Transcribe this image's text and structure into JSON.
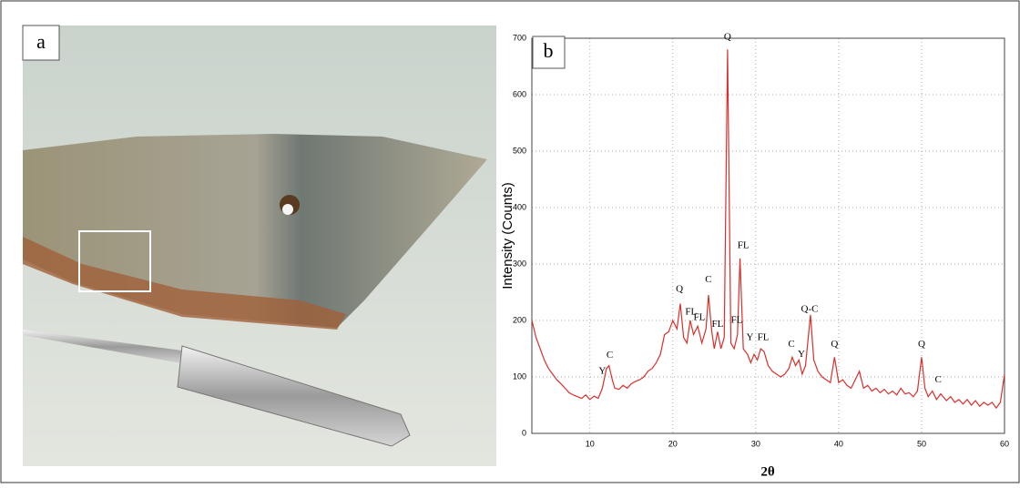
{
  "photo": {
    "label": "a"
  },
  "chart_data": {
    "type": "line",
    "panel_label": "b",
    "ylabel": "Intensity (Counts)",
    "xlabel": "2θ",
    "color": "#d8302c",
    "xlim": [
      3,
      60
    ],
    "ylim": [
      0,
      700
    ],
    "xticks": [
      10,
      20,
      30,
      40,
      50,
      60
    ],
    "yticks": [
      0,
      100,
      200,
      300,
      400,
      500,
      600,
      700
    ],
    "grid": true,
    "x": [
      3,
      3.5,
      4,
      4.5,
      5,
      5.5,
      6,
      6.5,
      7,
      7.5,
      8,
      8.5,
      9,
      9.5,
      10,
      10.5,
      11,
      11.5,
      12,
      12.3,
      12.7,
      13,
      13.5,
      14,
      14.5,
      15,
      15.5,
      16,
      16.5,
      17,
      17.5,
      18,
      18.5,
      19,
      19.5,
      20,
      20.5,
      20.9,
      21.3,
      21.7,
      22.1,
      22.5,
      23,
      23.5,
      24,
      24.3,
      24.7,
      25,
      25.4,
      25.8,
      26.2,
      26.6,
      27,
      27.4,
      27.8,
      28.1,
      28.5,
      29,
      29.4,
      29.8,
      30.2,
      30.6,
      31,
      31.5,
      32,
      32.5,
      33,
      33.5,
      34,
      34.4,
      34.8,
      35.2,
      35.6,
      36,
      36.6,
      37,
      37.5,
      38,
      38.5,
      39,
      39.5,
      40,
      40.5,
      41,
      41.5,
      42,
      42.5,
      43,
      43.5,
      44,
      44.5,
      45,
      45.5,
      46,
      46.5,
      47,
      47.5,
      48,
      48.5,
      49,
      49.5,
      50,
      50.4,
      50.8,
      51.3,
      51.8,
      52.3,
      53,
      53.5,
      54,
      54.5,
      55,
      55.5,
      56,
      56.5,
      57,
      57.5,
      58,
      58.5,
      59,
      59.5,
      60
    ],
    "values": [
      200,
      170,
      150,
      130,
      115,
      105,
      95,
      88,
      80,
      72,
      68,
      65,
      62,
      68,
      60,
      66,
      62,
      80,
      115,
      120,
      95,
      80,
      78,
      85,
      80,
      88,
      92,
      95,
      100,
      110,
      115,
      125,
      140,
      175,
      180,
      200,
      185,
      230,
      170,
      160,
      200,
      175,
      190,
      160,
      185,
      245,
      180,
      150,
      180,
      150,
      170,
      680,
      160,
      150,
      175,
      310,
      150,
      140,
      125,
      140,
      130,
      150,
      145,
      120,
      110,
      105,
      100,
      105,
      115,
      135,
      120,
      130,
      105,
      120,
      210,
      130,
      110,
      100,
      95,
      90,
      135,
      90,
      95,
      85,
      80,
      95,
      110,
      80,
      85,
      75,
      80,
      72,
      78,
      70,
      75,
      68,
      80,
      70,
      72,
      65,
      75,
      135,
      80,
      65,
      75,
      60,
      70,
      58,
      65,
      55,
      60,
      52,
      60,
      50,
      58,
      48,
      55,
      50,
      55,
      45,
      55,
      105
    ],
    "annotations": [
      {
        "text": "Y",
        "x": 11.5,
        "y": 100
      },
      {
        "text": "C",
        "x": 12.4,
        "y": 128
      },
      {
        "text": "Q",
        "x": 20.8,
        "y": 245
      },
      {
        "text": "FL",
        "x": 22.2,
        "y": 205
      },
      {
        "text": "FL",
        "x": 23.2,
        "y": 195
      },
      {
        "text": "C",
        "x": 24.3,
        "y": 262
      },
      {
        "text": "FL",
        "x": 25.4,
        "y": 183
      },
      {
        "text": "Q",
        "x": 26.6,
        "y": 692
      },
      {
        "text": "FL",
        "x": 27.7,
        "y": 190
      },
      {
        "text": "FL",
        "x": 28.5,
        "y": 323
      },
      {
        "text": "Y",
        "x": 29.3,
        "y": 160
      },
      {
        "text": "FL",
        "x": 30.9,
        "y": 160
      },
      {
        "text": "C",
        "x": 34.3,
        "y": 148
      },
      {
        "text": "Y",
        "x": 35.5,
        "y": 130
      },
      {
        "text": "Q-C",
        "x": 36.5,
        "y": 210
      },
      {
        "text": "Q",
        "x": 39.5,
        "y": 148
      },
      {
        "text": "Q",
        "x": 50,
        "y": 148
      },
      {
        "text": "C",
        "x": 52,
        "y": 85
      }
    ]
  }
}
